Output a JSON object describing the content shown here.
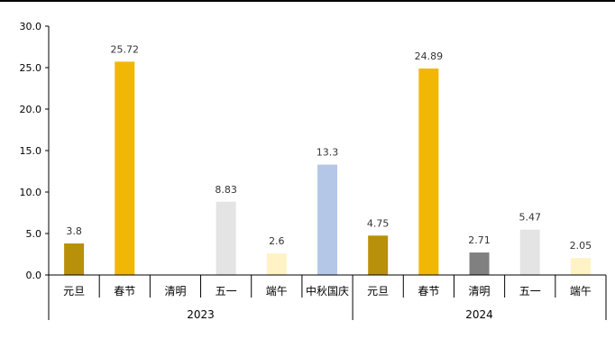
{
  "chart_data": {
    "type": "bar",
    "ylim": [
      0,
      30
    ],
    "yticks": [
      "0.0",
      "5.0",
      "10.0",
      "15.0",
      "20.0",
      "25.0",
      "30.0"
    ],
    "groups": [
      {
        "label": "2023",
        "bars": [
          {
            "category": "元旦",
            "value": 3.8,
            "label": "3.8",
            "color": "#b8900a"
          },
          {
            "category": "春节",
            "value": 25.72,
            "label": "25.72",
            "color": "#f2b705"
          },
          {
            "category": "清明",
            "value": null,
            "label": "",
            "color": "#808080"
          },
          {
            "category": "五一",
            "value": 8.83,
            "label": "8.83",
            "color": "#e4e4e4"
          },
          {
            "category": "端午",
            "value": 2.6,
            "label": "2.6",
            "color": "#fff2c4"
          },
          {
            "category": "中秋国庆",
            "value": 13.3,
            "label": "13.3",
            "color": "#b4c7e7"
          }
        ]
      },
      {
        "label": "2024",
        "bars": [
          {
            "category": "元旦",
            "value": 4.75,
            "label": "4.75",
            "color": "#b8900a"
          },
          {
            "category": "春节",
            "value": 24.89,
            "label": "24.89",
            "color": "#f2b705"
          },
          {
            "category": "清明",
            "value": 2.71,
            "label": "2.71",
            "color": "#808080"
          },
          {
            "category": "五一",
            "value": 5.47,
            "label": "5.47",
            "color": "#e4e4e4"
          },
          {
            "category": "端午",
            "value": 2.05,
            "label": "2.05",
            "color": "#fff2c4"
          }
        ]
      }
    ],
    "grid": false,
    "legend": "none"
  }
}
